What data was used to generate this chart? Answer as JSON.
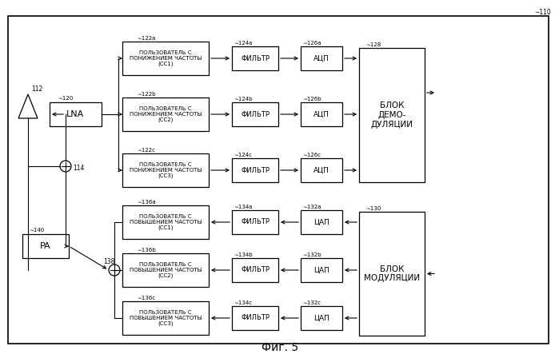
{
  "title": "Фиг. 5",
  "bg_color": "#ffffff",
  "fig_size": [
    6.99,
    4.48
  ],
  "dpi": 100,
  "antenna_label": "112",
  "circle_label": "114",
  "lna_label": "120",
  "lna_text": "LNA",
  "rx_rows": [
    {
      "box_label": "122a",
      "box_text": "ПОЛЬЗОВАТЕЛЬ С\nПОНИЖЕНИЕМ ЧАСТОТЫ\n(СС1)",
      "filt_label": "124a",
      "filt_text": "ФИЛЬТР",
      "adc_label": "126a",
      "adc_text": "АЦП"
    },
    {
      "box_label": "122b",
      "box_text": "ПОЛЬЗОВАТЕЛЬ С\nПОНИЖЕНИЕМ ЧАСТОТЫ\n(СС2)",
      "filt_label": "124b",
      "filt_text": "ФИЛЬТР",
      "adc_label": "126b",
      "adc_text": "АЦП"
    },
    {
      "box_label": "122c",
      "box_text": "ПОЛЬЗОВАТЕЛЬ С\nПОНИЖЕНИЕМ ЧАСТОТЫ\n(СС3)",
      "filt_label": "124c",
      "filt_text": "ФИЛЬТР",
      "adc_label": "126c",
      "adc_text": "АЦП"
    }
  ],
  "demod_label": "128",
  "demod_text": "БЛОК\nДЕМО-\nДУЛЯЦИИ",
  "tx_rows": [
    {
      "box_label": "136a",
      "box_text": "ПОЛЬЗОВАТЕЛЬ С\nПОВЫШЕНИЕМ ЧАСТОТЫ\n(СС1)",
      "filt_label": "134a",
      "filt_text": "ФИЛЬТР",
      "dac_label": "132a",
      "dac_text": "ЦАП"
    },
    {
      "box_label": "136b",
      "box_text": "ПОЛЬЗОВАТЕЛЬ С\nПОВЫШЕНИЕМ ЧАСТОТЫ\n(СС2)",
      "filt_label": "134b",
      "filt_text": "ФИЛЬТР",
      "dac_label": "132b",
      "dac_text": "ЦАП"
    },
    {
      "box_label": "136c",
      "box_text": "ПОЛЬЗОВАТЕЛЬ С\nПОВЫШЕНИЕМ ЧАСТОТЫ\n(СС3)",
      "filt_label": "134c",
      "filt_text": "ФИЛЬТР",
      "dac_label": "132c",
      "dac_text": "ЦАП"
    }
  ],
  "mod_label": "130",
  "mod_text": "БЛОК\nМОДУЛЯЦИИ",
  "pa_label": "140",
  "pa_text": "PA",
  "sum_label": "138"
}
